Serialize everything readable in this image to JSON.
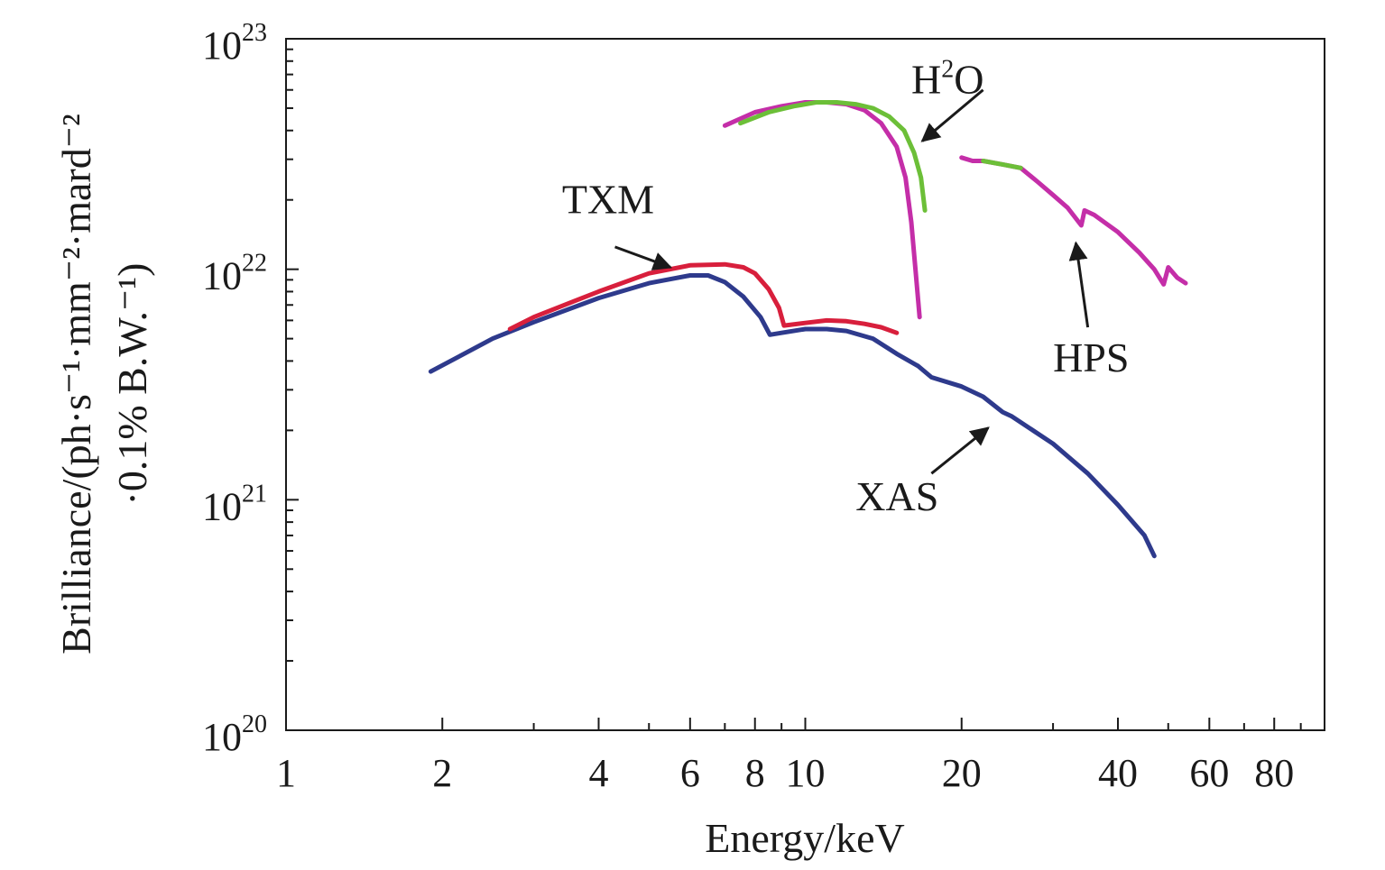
{
  "chart_data": {
    "type": "line",
    "title": "",
    "xlabel": "Energy/keV",
    "ylabel_line1": "Brilliance/(ph·s⁻¹·mm⁻²·mard⁻²",
    "ylabel_line2": "·0.1% B.W.⁻¹)",
    "xscale": "log",
    "yscale": "log",
    "xlim": [
      1,
      100
    ],
    "ylim": [
      1e+20,
      1e+23
    ],
    "grid": false,
    "x_ticks": [
      {
        "value": 1,
        "label": "1"
      },
      {
        "value": 2,
        "label": "2"
      },
      {
        "value": 4,
        "label": "4"
      },
      {
        "value": 6,
        "label": "6"
      },
      {
        "value": 8,
        "label": "8"
      },
      {
        "value": 10,
        "label": "10"
      },
      {
        "value": 20,
        "label": "20"
      },
      {
        "value": 40,
        "label": "40"
      },
      {
        "value": 60,
        "label": "60"
      },
      {
        "value": 80,
        "label": "80"
      }
    ],
    "y_ticks": [
      {
        "value": 1e+20,
        "base": "10",
        "exp": "20"
      },
      {
        "value": 1e+21,
        "base": "10",
        "exp": "21"
      },
      {
        "value": 1e+22,
        "base": "10",
        "exp": "22"
      },
      {
        "value": 1e+23,
        "base": "10",
        "exp": "23"
      }
    ],
    "series": [
      {
        "name": "XAS",
        "color": "#2e3a8c",
        "points": [
          [
            1.9,
            3.6e+21
          ],
          [
            2.5,
            5e+21
          ],
          [
            3.0,
            5.9e+21
          ],
          [
            4.0,
            7.5e+21
          ],
          [
            5.0,
            8.7e+21
          ],
          [
            6.0,
            9.4e+21
          ],
          [
            6.5,
            9.4e+21
          ],
          [
            7.0,
            8.8e+21
          ],
          [
            7.6,
            7.6e+21
          ],
          [
            8.2,
            6.2e+21
          ],
          [
            8.55,
            5.2e+21
          ],
          [
            9.0,
            5.3e+21
          ],
          [
            10.0,
            5.5e+21
          ],
          [
            11.0,
            5.5e+21
          ],
          [
            12.0,
            5.4e+21
          ],
          [
            13.5,
            5e+21
          ],
          [
            15.0,
            4.3e+21
          ],
          [
            16.5,
            3.8e+21
          ],
          [
            17.5,
            3.4e+21
          ],
          [
            20.0,
            3.1e+21
          ],
          [
            22.0,
            2.8e+21
          ],
          [
            24.0,
            2.4e+21
          ],
          [
            25.0,
            2.3e+21
          ],
          [
            30.0,
            1.75e+21
          ],
          [
            35.0,
            1.3e+21
          ],
          [
            40.0,
            9.5e+20
          ],
          [
            45.0,
            7e+20
          ],
          [
            47.0,
            5.7e+20
          ]
        ]
      },
      {
        "name": "TXM",
        "color": "#d81f3c",
        "points": [
          [
            2.7,
            5.5e+21
          ],
          [
            3.0,
            6.2e+21
          ],
          [
            4.0,
            8e+21
          ],
          [
            5.0,
            9.6e+21
          ],
          [
            6.0,
            1.04e+22
          ],
          [
            7.0,
            1.05e+22
          ],
          [
            7.6,
            1.02e+22
          ],
          [
            8.0,
            9.6e+21
          ],
          [
            8.5,
            8.2e+21
          ],
          [
            8.9,
            6.8e+21
          ],
          [
            9.1,
            5.7e+21
          ],
          [
            10.0,
            5.85e+21
          ],
          [
            11.0,
            6e+21
          ],
          [
            12.0,
            5.95e+21
          ],
          [
            13.0,
            5.8e+21
          ],
          [
            14.0,
            5.6e+21
          ],
          [
            15.0,
            5.3e+21
          ]
        ]
      },
      {
        "name": "H2O (magenta)",
        "color": "#c42ea8",
        "points": [
          [
            7.0,
            4.2e+22
          ],
          [
            8.0,
            4.8e+22
          ],
          [
            9.0,
            5.1e+22
          ],
          [
            10.0,
            5.3e+22
          ],
          [
            11.0,
            5.3e+22
          ],
          [
            12.0,
            5.2e+22
          ],
          [
            13.0,
            4.9e+22
          ],
          [
            14.0,
            4.3e+22
          ],
          [
            15.0,
            3.4e+22
          ],
          [
            15.6,
            2.5e+22
          ],
          [
            16.0,
            1.6e+22
          ],
          [
            16.3,
            1e+22
          ],
          [
            16.6,
            6.2e+21
          ]
        ]
      },
      {
        "name": "H2O (green)",
        "color": "#6cbf38",
        "points": [
          [
            7.5,
            4.3e+22
          ],
          [
            8.5,
            4.8e+22
          ],
          [
            9.5,
            5.1e+22
          ],
          [
            10.5,
            5.3e+22
          ],
          [
            11.5,
            5.3e+22
          ],
          [
            12.5,
            5.2e+22
          ],
          [
            13.5,
            5e+22
          ],
          [
            14.5,
            4.6e+22
          ],
          [
            15.5,
            4e+22
          ],
          [
            16.2,
            3.2e+22
          ],
          [
            16.7,
            2.5e+22
          ],
          [
            17.0,
            1.8e+22
          ]
        ]
      },
      {
        "name": "HPS",
        "color": "#c42ea8",
        "points": [
          [
            20.0,
            3.05e+22
          ],
          [
            21.0,
            2.95e+22
          ],
          [
            22.0,
            2.95e+22
          ],
          [
            24.0,
            2.85e+22
          ],
          [
            26.0,
            2.75e+22
          ],
          [
            28.0,
            2.4e+22
          ],
          [
            30.0,
            2.1e+22
          ],
          [
            32.0,
            1.85e+22
          ],
          [
            34.0,
            1.55e+22
          ],
          [
            34.5,
            1.8e+22
          ],
          [
            36.0,
            1.72e+22
          ],
          [
            40.0,
            1.45e+22
          ],
          [
            44.0,
            1.18e+22
          ],
          [
            47.0,
            1e+22
          ],
          [
            49.0,
            8.6e+21
          ],
          [
            50.0,
            1.02e+22
          ],
          [
            52.0,
            9.2e+21
          ],
          [
            54.0,
            8.7e+21
          ]
        ]
      },
      {
        "name": "HPS (green segment)",
        "color": "#6cbf38",
        "points": [
          [
            22.0,
            2.95e+22
          ],
          [
            24.0,
            2.85e+22
          ],
          [
            26.0,
            2.75e+22
          ]
        ]
      }
    ],
    "annotations": [
      {
        "text_main": "H",
        "text_sup": "2",
        "text_tail": "O",
        "label_x": 16.0,
        "label_y": 5.8e+22,
        "arrow_from": [
          22.0,
          6e+22
        ],
        "arrow_to": [
          16.8,
          3.6e+22
        ]
      },
      {
        "text": "TXM",
        "label_x": 3.4,
        "label_y": 1.75e+22,
        "arrow_from": [
          4.3,
          1.25e+22
        ],
        "arrow_to": [
          5.5,
          1.02e+22
        ]
      },
      {
        "text": "HPS",
        "label_x": 30.0,
        "label_y": 3.6e+21,
        "arrow_from": [
          35.0,
          5.6e+21
        ],
        "arrow_to": [
          33.2,
          1.3e+22
        ]
      },
      {
        "text": "XAS",
        "label_x": 12.5,
        "label_y": 9e+20,
        "arrow_from": [
          17.5,
          1.3e+21
        ],
        "arrow_to": [
          22.5,
          2.05e+21
        ]
      }
    ]
  }
}
